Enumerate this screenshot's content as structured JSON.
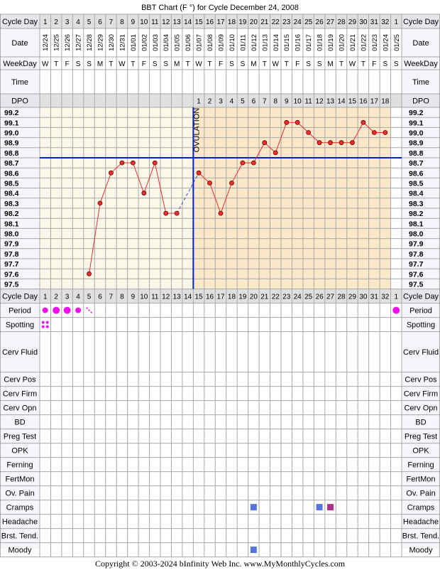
{
  "title": "BBT Chart (F °) for Cycle December 24, 2008",
  "footer": "Copyright © 2003-2024 bInfinity Web Inc.     www.MyMonthlyCycles.com",
  "ovulation_label": "OVULATION",
  "row_labels": {
    "cycle_day": "Cycle Day",
    "date": "Date",
    "weekday": "WeekDay",
    "time": "Time",
    "dpo": "DPO"
  },
  "cycle_days": [
    "1",
    "2",
    "3",
    "4",
    "5",
    "6",
    "7",
    "8",
    "9",
    "10",
    "11",
    "12",
    "13",
    "14",
    "15",
    "16",
    "17",
    "18",
    "19",
    "20",
    "21",
    "22",
    "23",
    "24",
    "25",
    "26",
    "27",
    "28",
    "29",
    "30",
    "31",
    "32",
    "1"
  ],
  "dates": [
    "12/24",
    "12/25",
    "12/26",
    "12/27",
    "12/28",
    "12/29",
    "12/30",
    "12/31",
    "01/01",
    "01/02",
    "01/03",
    "01/04",
    "01/05",
    "01/06",
    "01/07",
    "01/08",
    "01/09",
    "01/10",
    "01/11",
    "01/12",
    "01/13",
    "01/14",
    "01/15",
    "01/16",
    "01/17",
    "01/18",
    "01/19",
    "01/20",
    "01/21",
    "01/22",
    "01/23",
    "01/24",
    "01/25"
  ],
  "weekdays": [
    "W",
    "T",
    "F",
    "S",
    "S",
    "M",
    "T",
    "W",
    "T",
    "F",
    "S",
    "S",
    "M",
    "T",
    "W",
    "T",
    "F",
    "S",
    "S",
    "M",
    "T",
    "W",
    "T",
    "F",
    "S",
    "S",
    "M",
    "T",
    "W",
    "T",
    "F",
    "S",
    "S"
  ],
  "dpo": [
    "",
    "",
    "",
    "",
    "",
    "",
    "",
    "",
    "",
    "",
    "",
    "",
    "",
    "",
    "1",
    "2",
    "3",
    "4",
    "5",
    "6",
    "7",
    "8",
    "9",
    "10",
    "11",
    "12",
    "13",
    "14",
    "15",
    "16",
    "17",
    "18",
    ""
  ],
  "temp_labels": [
    "99.2",
    "99.1",
    "99.0",
    "98.9",
    "98.8",
    "98.7",
    "98.6",
    "98.5",
    "98.4",
    "98.3",
    "98.2",
    "98.1",
    "98.0",
    "97.9",
    "97.8",
    "97.7",
    "97.6",
    "97.5"
  ],
  "chart_data": {
    "type": "line",
    "title": "BBT Chart (F °) for Cycle December 24, 2008",
    "xlabel": "Cycle Day",
    "ylabel": "",
    "ylim": [
      97.5,
      99.2
    ],
    "x": [
      1,
      2,
      3,
      4,
      5,
      6,
      7,
      8,
      9,
      10,
      11,
      12,
      13,
      14,
      15,
      16,
      17,
      18,
      19,
      20,
      21,
      22,
      23,
      24,
      25,
      26,
      27,
      28,
      29,
      30,
      31,
      32
    ],
    "series": [
      {
        "values": [
          null,
          null,
          null,
          null,
          97.6,
          98.3,
          98.6,
          98.7,
          98.7,
          98.4,
          98.7,
          98.2,
          98.2,
          null,
          98.6,
          98.5,
          98.2,
          98.5,
          98.7,
          98.7,
          98.9,
          98.8,
          99.1,
          99.1,
          99.0,
          98.9,
          98.9,
          98.9,
          98.9,
          99.1,
          99.0,
          99.0
        ],
        "color": "#e83030"
      }
    ],
    "coverline": 98.8,
    "ovulation_day": 14,
    "colors": {
      "pre_ovulation_bg": "#fbf8ea",
      "post_ovulation_bg": "#fbe8c8",
      "coverline": "#0022cc",
      "ovulation_line": "#0022cc",
      "line": "#e83030",
      "grid": "#a8a8a8",
      "header_bg": "#e0e0e0",
      "label_bg": "#f0eaf6"
    }
  },
  "symptom_rows": [
    {
      "label": "Period",
      "marks": [
        {
          "day": 1,
          "kind": "period-medium"
        },
        {
          "day": 2,
          "kind": "period-heavy"
        },
        {
          "day": 3,
          "kind": "period-heavy"
        },
        {
          "day": 4,
          "kind": "period-medium"
        },
        {
          "day": 5,
          "kind": "period-spotting"
        },
        {
          "day": 33,
          "kind": "period-heavy"
        }
      ]
    },
    {
      "label": "Spotting",
      "marks": [
        {
          "day": 1,
          "kind": "spotting"
        }
      ]
    },
    {
      "label": "Cerv Fluid",
      "marks": []
    },
    {
      "label": "Cerv Pos",
      "marks": []
    },
    {
      "label": "Cerv Firm",
      "marks": []
    },
    {
      "label": "Cerv Opn",
      "marks": []
    },
    {
      "label": "BD",
      "marks": []
    },
    {
      "label": "Preg Test",
      "marks": []
    },
    {
      "label": "OPK",
      "marks": []
    },
    {
      "label": "Ferning",
      "marks": []
    },
    {
      "label": "FertMon",
      "marks": []
    },
    {
      "label": "Ov. Pain",
      "marks": []
    },
    {
      "label": "Cramps",
      "marks": [
        {
          "day": 20,
          "kind": "blue-square"
        },
        {
          "day": 26,
          "kind": "blue-square"
        },
        {
          "day": 27,
          "kind": "purple-square"
        }
      ]
    },
    {
      "label": "Headache",
      "marks": []
    },
    {
      "label": "Brst. Tend.",
      "marks": []
    },
    {
      "label": "Moody",
      "marks": [
        {
          "day": 20,
          "kind": "blue-square"
        }
      ]
    }
  ],
  "mark_colors": {
    "period": "#ee11ee",
    "blue-square": "#5577dd",
    "purple-square": "#aa3388"
  }
}
